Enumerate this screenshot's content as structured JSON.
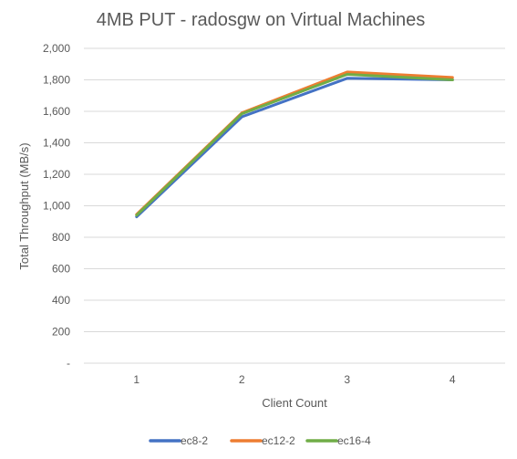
{
  "chart_data": {
    "type": "line",
    "title": "4MB PUT - radosgw on Virtual Machines",
    "xlabel": "Client Count",
    "ylabel": "Total Throughput (MB/s)",
    "categories": [
      "1",
      "2",
      "3",
      "4"
    ],
    "ylim": [
      0,
      2000
    ],
    "yticks": [
      0,
      200,
      400,
      600,
      800,
      1000,
      1200,
      1400,
      1600,
      1800,
      2000
    ],
    "ytick_labels": [
      "-",
      "200",
      "400",
      "600",
      "800",
      "1,000",
      "1,200",
      "1,400",
      "1,600",
      "1,800",
      "2,000"
    ],
    "grid": true,
    "legend_position": "bottom",
    "series": [
      {
        "name": "ec8-2",
        "color": "#4472c4",
        "values": [
          930,
          1565,
          1810,
          1800
        ]
      },
      {
        "name": "ec12-2",
        "color": "#ed7d31",
        "values": [
          945,
          1590,
          1850,
          1815
        ]
      },
      {
        "name": "ec16-4",
        "color": "#70ad47",
        "values": [
          940,
          1585,
          1835,
          1800
        ]
      }
    ]
  }
}
